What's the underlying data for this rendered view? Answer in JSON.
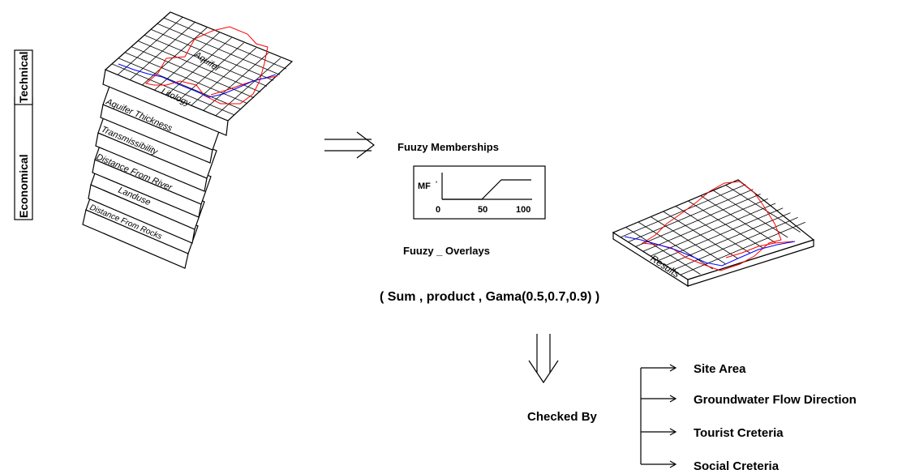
{
  "criteria_groups": {
    "technical": "Technical",
    "economical": "Economical"
  },
  "layers": [
    {
      "label": "Aquifer"
    },
    {
      "label": "Litology"
    },
    {
      "label": "Aquifer Thickness"
    },
    {
      "label": "Transmissibility"
    },
    {
      "label": "Distance From River"
    },
    {
      "label": "Landuse"
    },
    {
      "label": "Distance From Rocks"
    }
  ],
  "membership": {
    "title": "Fuuzy Memberships",
    "ylabel": "MF",
    "xticks": [
      "0",
      "50",
      "100"
    ]
  },
  "overlays": {
    "title": "Fuuzy _ Overlays",
    "methods": "( Sum , product , Gama(0.5,0.7,0.9) )"
  },
  "result_layer": {
    "label": "Results"
  },
  "check": {
    "label": "Checked By",
    "items": [
      "Site Area",
      "Groundwater Flow Direction",
      "Tourist Creteria",
      "Social Creteria"
    ]
  },
  "colors": {
    "line": "#000000",
    "red_curve": "#ff0000",
    "blue_curve": "#0000ff"
  }
}
